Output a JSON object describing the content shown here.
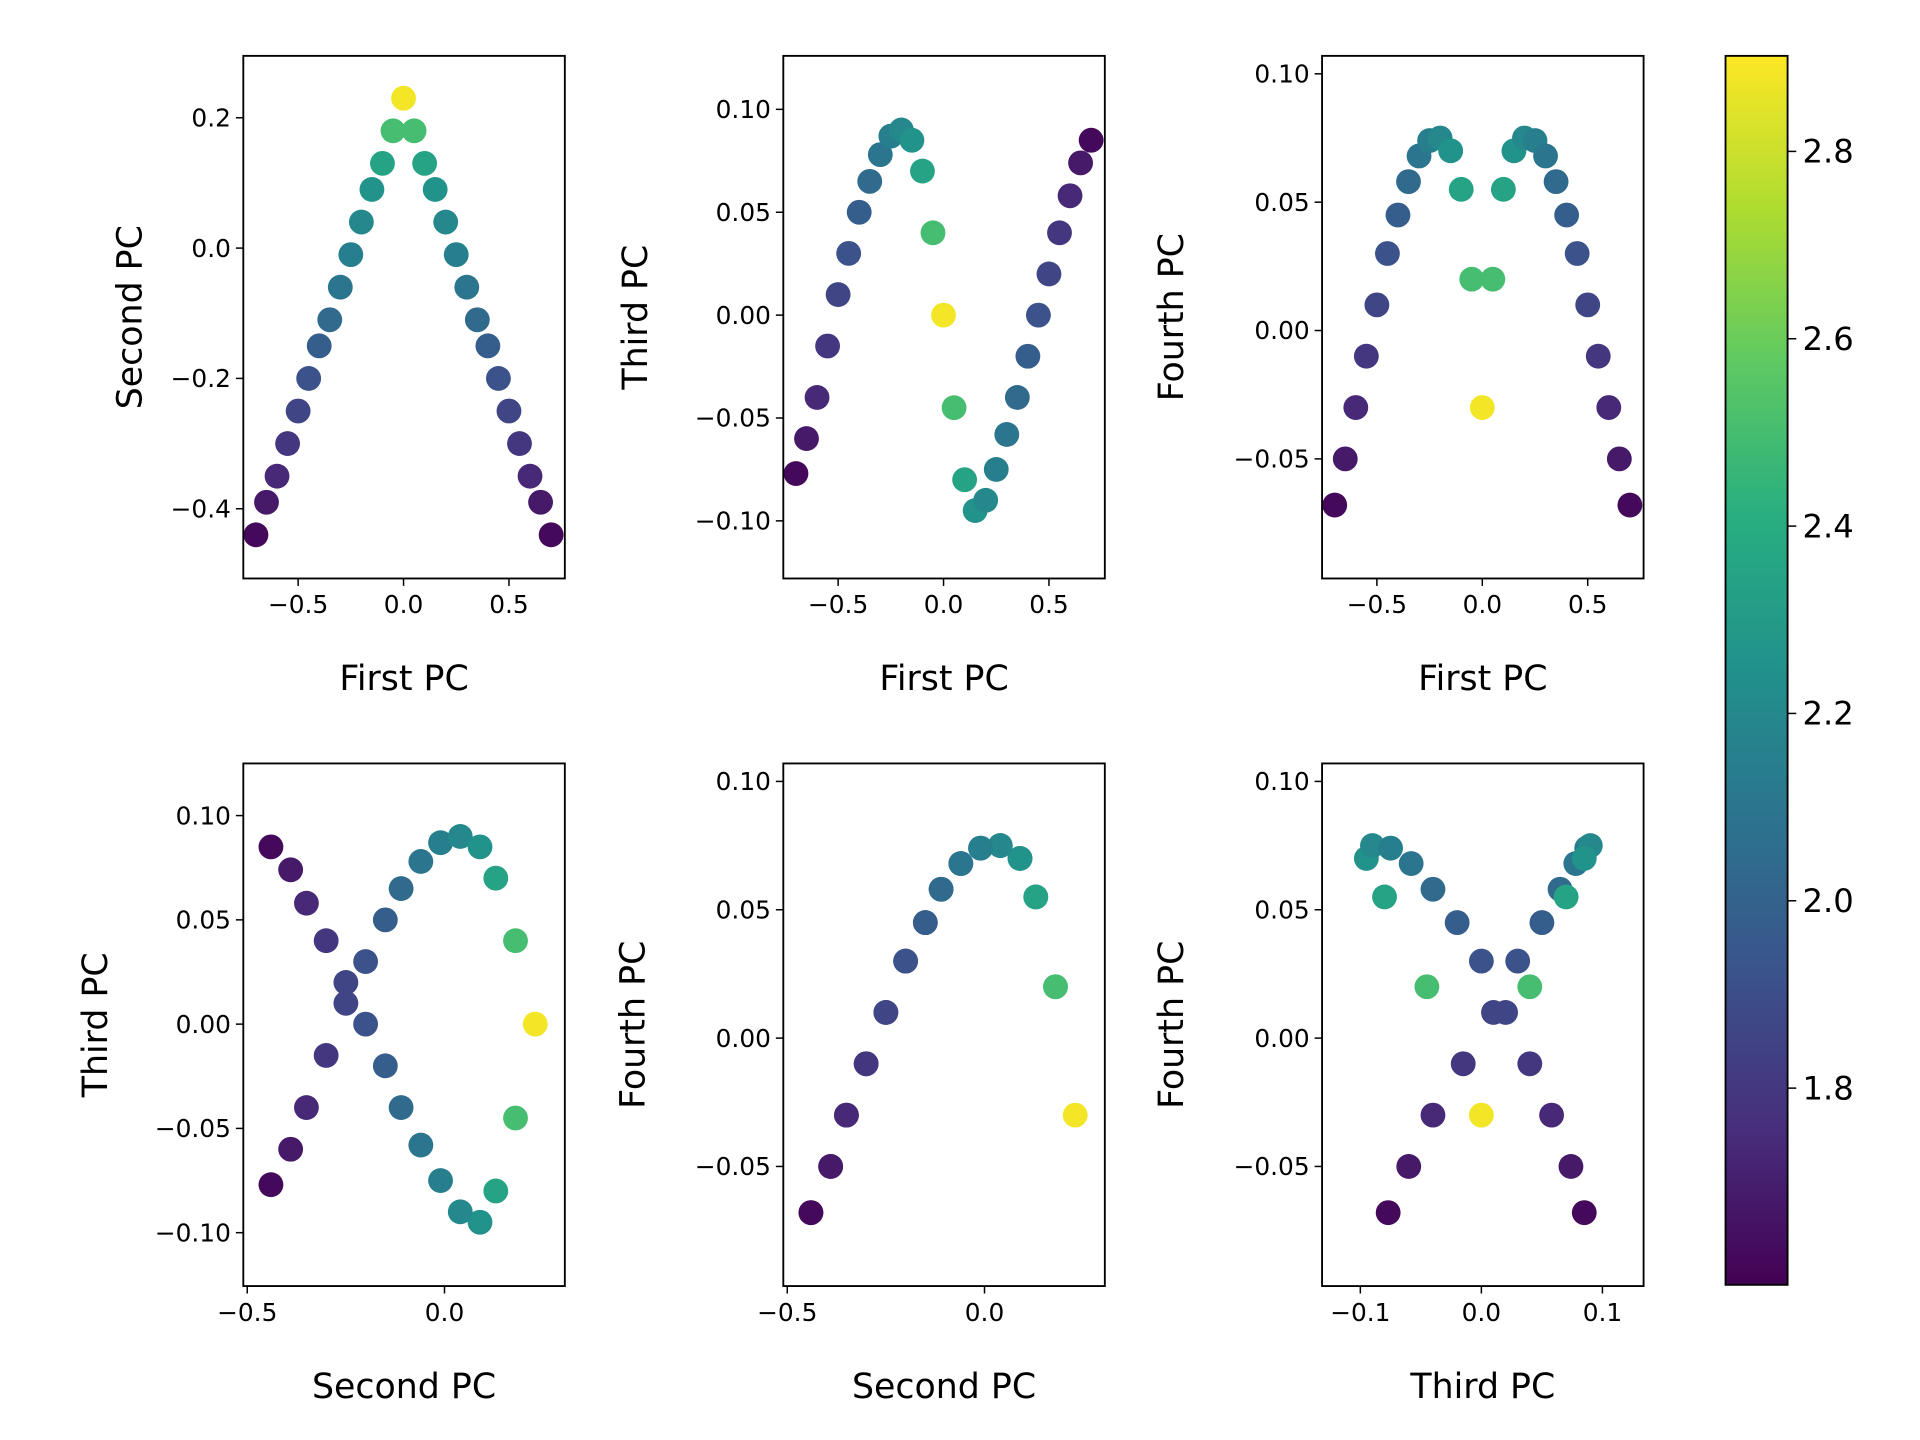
{
  "chart_data": [
    {
      "type": "scatter",
      "xlabel": "First PC",
      "ylabel": "Second PC",
      "x": [
        -0.7,
        -0.65,
        -0.6,
        -0.55,
        -0.5,
        -0.45,
        -0.4,
        -0.35,
        -0.3,
        -0.25,
        -0.2,
        -0.15,
        -0.1,
        -0.05,
        0,
        0.05,
        0.1,
        0.15,
        0.2,
        0.25,
        0.3,
        0.35,
        0.4,
        0.45,
        0.5,
        0.55,
        0.6,
        0.65,
        0.7
      ],
      "y": [
        -0.44,
        -0.39,
        -0.35,
        -0.3,
        -0.25,
        -0.2,
        -0.15,
        -0.11,
        -0.06,
        -0.01,
        0.04,
        0.09,
        0.13,
        0.18,
        0.23,
        0.18,
        0.13,
        0.09,
        0.04,
        -0.01,
        -0.06,
        -0.11,
        -0.15,
        -0.2,
        -0.25,
        -0.3,
        -0.35,
        -0.39,
        -0.44
      ],
      "c": [
        1.62,
        1.68,
        1.74,
        1.8,
        1.86,
        1.92,
        1.98,
        2.04,
        2.1,
        2.15,
        2.2,
        2.26,
        2.35,
        2.5,
        2.88,
        2.5,
        2.35,
        2.26,
        2.2,
        2.15,
        2.1,
        2.04,
        1.98,
        1.92,
        1.86,
        1.8,
        1.74,
        1.68,
        1.62
      ],
      "xlim": [
        -0.76,
        0.765
      ],
      "ylim": [
        -0.507,
        0.295
      ],
      "xticks": [
        {
          "value": -0.5,
          "label": "−0.5"
        },
        {
          "value": 0,
          "label": "0.0"
        },
        0.5
      ],
      "yticks": [
        {
          "value": -0.4,
          "label": "−0.4"
        },
        {
          "value": -0.2,
          "label": "−0.2"
        },
        {
          "value": 0,
          "label": "0.0"
        },
        0.2
      ]
    },
    {
      "type": "scatter",
      "xlabel": "First PC",
      "ylabel": "Third PC",
      "x": [
        -0.7,
        -0.65,
        -0.6,
        -0.55,
        -0.5,
        -0.45,
        -0.4,
        -0.35,
        -0.3,
        -0.25,
        -0.2,
        -0.15,
        -0.1,
        -0.05,
        0,
        0.05,
        0.1,
        0.15,
        0.2,
        0.25,
        0.3,
        0.35,
        0.4,
        0.45,
        0.5,
        0.55,
        0.6,
        0.65,
        0.7
      ],
      "y": [
        -0.077,
        -0.06,
        -0.04,
        -0.015,
        0.01,
        0.03,
        0.05,
        0.065,
        0.078,
        0.087,
        0.09,
        0.085,
        0.07,
        0.04,
        0,
        -0.045,
        -0.08,
        -0.095,
        -0.09,
        -0.075,
        -0.058,
        -0.04,
        -0.02,
        0,
        0.02,
        0.04,
        0.058,
        0.074,
        0.085
      ],
      "c": [
        1.62,
        1.68,
        1.74,
        1.8,
        1.86,
        1.92,
        1.98,
        2.04,
        2.1,
        2.15,
        2.2,
        2.26,
        2.35,
        2.5,
        2.88,
        2.5,
        2.35,
        2.26,
        2.2,
        2.15,
        2.1,
        2.04,
        1.98,
        1.92,
        1.86,
        1.8,
        1.74,
        1.68,
        1.62
      ],
      "xlim": [
        -0.76,
        0.765
      ],
      "ylim": [
        -0.128,
        0.126
      ],
      "xticks": [
        {
          "value": -0.5,
          "label": "−0.5"
        },
        {
          "value": 0,
          "label": "0.0"
        },
        0.5
      ],
      "yticks": [
        {
          "value": -0.1,
          "label": "−0.10"
        },
        {
          "value": -0.05,
          "label": "−0.05"
        },
        {
          "value": 0,
          "label": "0.00"
        },
        0.05,
        {
          "value": 0.1,
          "label": "0.10"
        }
      ]
    },
    {
      "type": "scatter",
      "xlabel": "First PC",
      "ylabel": "Fourth PC",
      "x": [
        -0.7,
        -0.65,
        -0.6,
        -0.55,
        -0.5,
        -0.45,
        -0.4,
        -0.35,
        -0.3,
        -0.25,
        -0.2,
        -0.15,
        -0.1,
        -0.05,
        0,
        0.05,
        0.1,
        0.15,
        0.2,
        0.25,
        0.3,
        0.35,
        0.4,
        0.45,
        0.5,
        0.55,
        0.6,
        0.65,
        0.7
      ],
      "y": [
        -0.068,
        -0.05,
        -0.03,
        -0.01,
        0.01,
        0.03,
        0.045,
        0.058,
        0.068,
        0.074,
        0.075,
        0.07,
        0.055,
        0.02,
        -0.03,
        0.02,
        0.055,
        0.07,
        0.075,
        0.074,
        0.068,
        0.058,
        0.045,
        0.03,
        0.01,
        -0.01,
        -0.03,
        -0.05,
        -0.068
      ],
      "c": [
        1.62,
        1.68,
        1.74,
        1.8,
        1.86,
        1.92,
        1.98,
        2.04,
        2.1,
        2.15,
        2.2,
        2.26,
        2.35,
        2.5,
        2.88,
        2.5,
        2.35,
        2.26,
        2.2,
        2.15,
        2.1,
        2.04,
        1.98,
        1.92,
        1.86,
        1.8,
        1.74,
        1.68,
        1.62
      ],
      "xlim": [
        -0.76,
        0.765
      ],
      "ylim": [
        -0.0966,
        0.107
      ],
      "xticks": [
        {
          "value": -0.5,
          "label": "−0.5"
        },
        {
          "value": 0,
          "label": "0.0"
        },
        0.5
      ],
      "yticks": [
        {
          "value": -0.05,
          "label": "−0.05"
        },
        {
          "value": 0,
          "label": "0.00"
        },
        0.05,
        {
          "value": 0.1,
          "label": "0.10"
        }
      ]
    },
    {
      "type": "scatter",
      "xlabel": "Second PC",
      "ylabel": "Third PC",
      "x": [
        -0.44,
        -0.39,
        -0.35,
        -0.3,
        -0.25,
        -0.2,
        -0.15,
        -0.11,
        -0.06,
        -0.01,
        0.04,
        0.09,
        0.13,
        0.18,
        0.23,
        0.18,
        0.13,
        0.09,
        0.04,
        -0.01,
        -0.06,
        -0.11,
        -0.15,
        -0.2,
        -0.25,
        -0.3,
        -0.35,
        -0.39,
        -0.44
      ],
      "y": [
        -0.077,
        -0.06,
        -0.04,
        -0.015,
        0.01,
        0.03,
        0.05,
        0.065,
        0.078,
        0.087,
        0.09,
        0.085,
        0.07,
        0.04,
        0,
        -0.045,
        -0.08,
        -0.095,
        -0.09,
        -0.075,
        -0.058,
        -0.04,
        -0.02,
        0,
        0.02,
        0.04,
        0.058,
        0.074,
        0.085
      ],
      "c": [
        1.62,
        1.68,
        1.74,
        1.8,
        1.86,
        1.92,
        1.98,
        2.04,
        2.1,
        2.15,
        2.2,
        2.26,
        2.35,
        2.5,
        2.88,
        2.5,
        2.35,
        2.26,
        2.2,
        2.15,
        2.1,
        2.04,
        1.98,
        1.92,
        1.86,
        1.8,
        1.74,
        1.68,
        1.62
      ],
      "xlim": [
        -0.51,
        0.305
      ],
      "ylim": [
        -0.1256,
        0.125
      ],
      "xticks": [
        {
          "value": -0.5,
          "label": "−0.5"
        },
        {
          "value": 0,
          "label": "0.0"
        }
      ],
      "yticks": [
        {
          "value": -0.1,
          "label": "−0.10"
        },
        {
          "value": -0.05,
          "label": "−0.05"
        },
        {
          "value": 0,
          "label": "0.00"
        },
        0.05,
        {
          "value": 0.1,
          "label": "0.10"
        }
      ]
    },
    {
      "type": "scatter",
      "xlabel": "Second PC",
      "ylabel": "Fourth PC",
      "x": [
        -0.44,
        -0.39,
        -0.35,
        -0.3,
        -0.25,
        -0.2,
        -0.15,
        -0.11,
        -0.06,
        -0.01,
        0.04,
        0.09,
        0.13,
        0.18,
        0.23,
        0.18,
        0.13,
        0.09,
        0.04,
        -0.01,
        -0.06,
        -0.11,
        -0.15,
        -0.2,
        -0.25,
        -0.3,
        -0.35,
        -0.39,
        -0.44
      ],
      "y": [
        -0.068,
        -0.05,
        -0.03,
        -0.01,
        0.01,
        0.03,
        0.045,
        0.058,
        0.068,
        0.074,
        0.075,
        0.07,
        0.055,
        0.02,
        -0.03,
        0.02,
        0.055,
        0.07,
        0.075,
        0.074,
        0.068,
        0.058,
        0.045,
        0.03,
        0.01,
        -0.01,
        -0.03,
        -0.05,
        -0.068
      ],
      "c": [
        1.62,
        1.68,
        1.74,
        1.8,
        1.86,
        1.92,
        1.98,
        2.04,
        2.1,
        2.15,
        2.2,
        2.26,
        2.35,
        2.5,
        2.88,
        2.5,
        2.35,
        2.26,
        2.2,
        2.15,
        2.1,
        2.04,
        1.98,
        1.92,
        1.86,
        1.8,
        1.74,
        1.68,
        1.62
      ],
      "xlim": [
        -0.51,
        0.305
      ],
      "ylim": [
        -0.0966,
        0.107
      ],
      "xticks": [
        {
          "value": -0.5,
          "label": "−0.5"
        },
        {
          "value": 0,
          "label": "0.0"
        }
      ],
      "yticks": [
        {
          "value": -0.05,
          "label": "−0.05"
        },
        {
          "value": 0,
          "label": "0.00"
        },
        0.05,
        {
          "value": 0.1,
          "label": "0.10"
        }
      ]
    },
    {
      "type": "scatter",
      "xlabel": "Third PC",
      "ylabel": "Fourth PC",
      "x": [
        -0.077,
        -0.06,
        -0.04,
        -0.015,
        0.01,
        0.03,
        0.05,
        0.065,
        0.078,
        0.087,
        0.09,
        0.085,
        0.07,
        0.04,
        0,
        -0.045,
        -0.08,
        -0.095,
        -0.09,
        -0.075,
        -0.058,
        -0.04,
        -0.02,
        0,
        0.02,
        0.04,
        0.058,
        0.074,
        0.085
      ],
      "y": [
        -0.068,
        -0.05,
        -0.03,
        -0.01,
        0.01,
        0.03,
        0.045,
        0.058,
        0.068,
        0.074,
        0.075,
        0.07,
        0.055,
        0.02,
        -0.03,
        0.02,
        0.055,
        0.07,
        0.075,
        0.074,
        0.068,
        0.058,
        0.045,
        0.03,
        0.01,
        -0.01,
        -0.03,
        -0.05,
        -0.068
      ],
      "c": [
        1.62,
        1.68,
        1.74,
        1.8,
        1.86,
        1.92,
        1.98,
        2.04,
        2.1,
        2.15,
        2.2,
        2.26,
        2.35,
        2.5,
        2.88,
        2.5,
        2.35,
        2.26,
        2.2,
        2.15,
        2.1,
        2.04,
        1.98,
        1.92,
        1.86,
        1.8,
        1.74,
        1.68,
        1.62
      ],
      "xlim": [
        -0.1316,
        0.134
      ],
      "ylim": [
        -0.0966,
        0.107
      ],
      "xticks": [
        {
          "value": -0.1,
          "label": "−0.1"
        },
        {
          "value": 0,
          "label": "0.0"
        },
        0.1
      ],
      "yticks": [
        {
          "value": -0.05,
          "label": "−0.05"
        },
        {
          "value": 0,
          "label": "0.00"
        },
        0.05,
        {
          "value": 0.1,
          "label": "0.10"
        }
      ]
    }
  ],
  "colorbar": {
    "colormap": "viridis",
    "lim": [
      1.59,
      2.902
    ],
    "ticks": [
      1.8,
      {
        "value": 2.0,
        "label": "2.0"
      },
      2.2,
      2.4,
      2.6,
      2.8
    ]
  }
}
